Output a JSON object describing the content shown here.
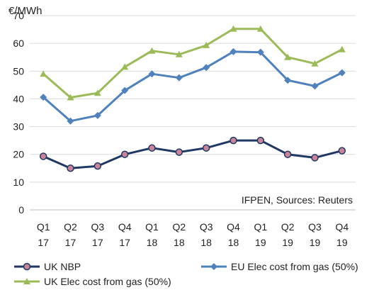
{
  "chart_data": {
    "type": "line",
    "ylabel": "€/MWh",
    "ylim": [
      0,
      70
    ],
    "yticks": [
      "0",
      "10",
      "20",
      "30",
      "40",
      "50",
      "60",
      "70"
    ],
    "categories": [
      [
        "Q1",
        "17"
      ],
      [
        "Q2",
        "17"
      ],
      [
        "Q3",
        "17"
      ],
      [
        "Q4",
        "17"
      ],
      [
        "Q1",
        "18"
      ],
      [
        "Q2",
        "18"
      ],
      [
        "Q3",
        "18"
      ],
      [
        "Q4",
        "18"
      ],
      [
        "Q1",
        "19"
      ],
      [
        "Q2",
        "19"
      ],
      [
        "Q3",
        "19"
      ],
      [
        "Q4",
        "19"
      ]
    ],
    "grid": true,
    "annotation": "IFPEN, Sources: Reuters",
    "legend_position": "bottom",
    "series": [
      {
        "name": "UK NBP",
        "color": "#1f3864",
        "marker": "circle",
        "marker_fill": "#c9849a",
        "values": [
          19.3,
          15.0,
          15.8,
          20.0,
          22.3,
          20.8,
          22.3,
          25.0,
          25.0,
          20.0,
          18.8,
          21.3
        ]
      },
      {
        "name": "EU Elec cost from gas (50%)",
        "color": "#4f81bd",
        "marker": "diamond",
        "values": [
          40.6,
          32.0,
          34.0,
          43.0,
          49.0,
          47.6,
          51.3,
          57.0,
          56.8,
          46.7,
          44.6,
          49.4
        ]
      },
      {
        "name": "UK Elec cost from gas (50%)",
        "color": "#9bbb59",
        "marker": "triangle",
        "values": [
          49.0,
          40.5,
          42.1,
          51.5,
          57.3,
          56.0,
          59.3,
          65.2,
          65.2,
          55.0,
          52.7,
          57.8
        ]
      }
    ]
  }
}
